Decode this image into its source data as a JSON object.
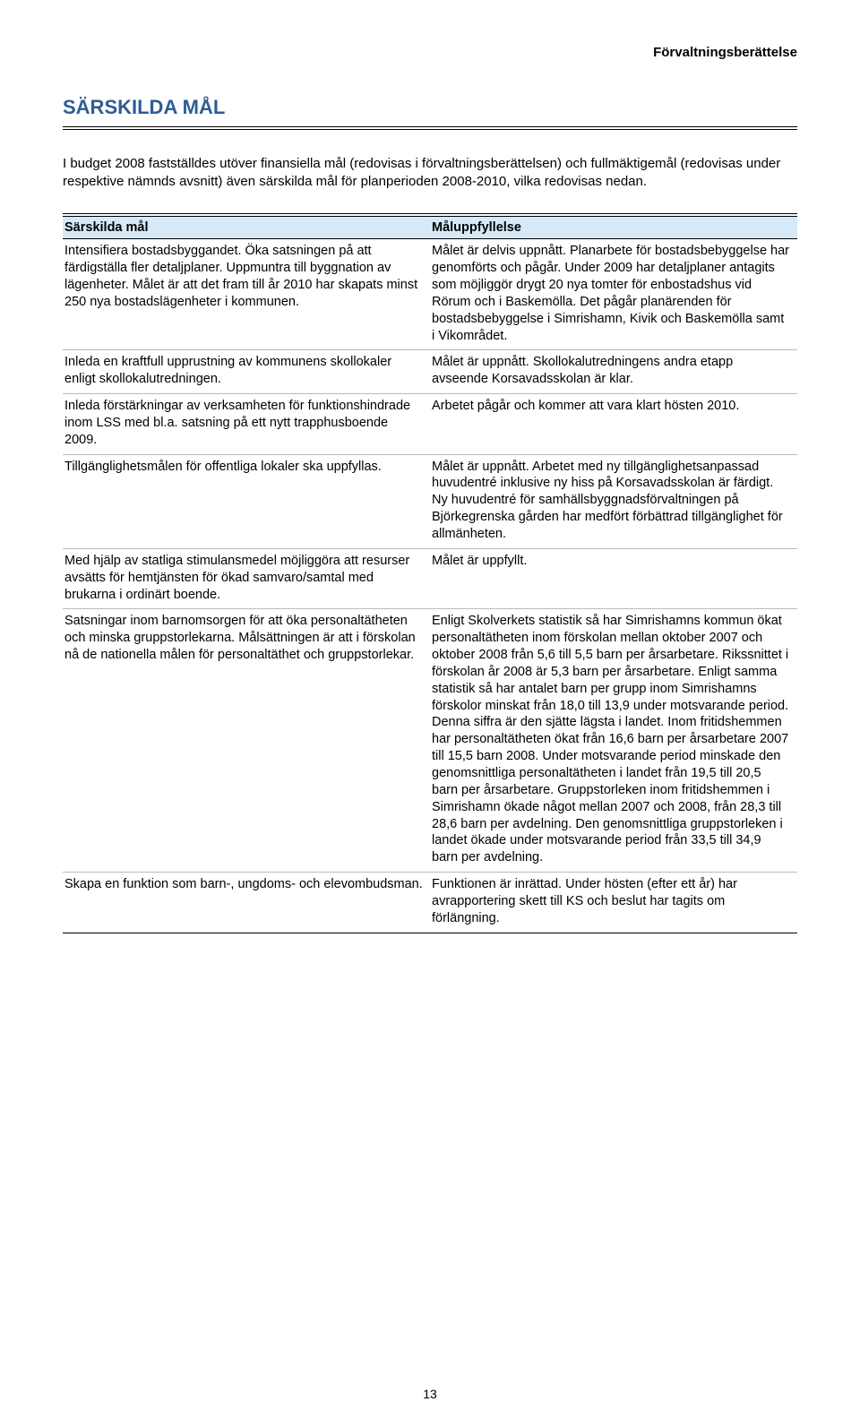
{
  "header": "Förvaltningsberättelse",
  "title": "SÄRSKILDA MÅL",
  "intro": "I budget 2008 fastställdes utöver finansiella mål (redovisas i förvaltningsberättelsen) och fullmäktigemål (redovisas under respektive nämnds avsnitt) även särskilda mål för planperioden 2008-2010, vilka redovisas nedan.",
  "table": {
    "col1_header": "Särskilda mål",
    "col2_header": "Måluppfyllelse",
    "rows": [
      {
        "c1": "Intensifiera bostadsbyggandet. Öka satsningen på att färdigställa fler detaljplaner. Uppmuntra till byggnation av lägenheter. Målet är att det fram till år 2010 har skapats minst 250 nya bostadslägenheter i kommunen.",
        "c2": "Målet är delvis uppnått. Planarbete för bostadsbebyggelse har genomförts och pågår. Under 2009 har detaljplaner antagits som möjliggör drygt 20 nya tomter för enbostadshus vid Rörum och i Baskemölla. Det pågår planärenden för bostadsbebyggelse i Simrishamn, Kivik och Baskemölla samt i Vikområdet."
      },
      {
        "c1": "Inleda en kraftfull upprustning av kommunens skollokaler enligt skollokalutredningen.",
        "c2": "Målet är uppnått. Skollokalutredningens andra etapp avseende Korsavadsskolan är klar."
      },
      {
        "c1": "Inleda förstärkningar av verksamheten för funktionshindrade inom LSS med bl.a. satsning på ett nytt trapphusboende 2009.",
        "c2": "Arbetet pågår och kommer att vara klart hösten 2010."
      },
      {
        "c1": "Tillgänglighetsmålen för offentliga lokaler ska uppfyllas.",
        "c2": "Målet är uppnått. Arbetet med ny tillgänglighetsanpassad huvudentré inklusive ny hiss på Korsavadsskolan är färdigt. Ny huvudentré för samhällsbyggnadsförvaltningen på Björkegrenska gården har medfört förbättrad tillgänglighet för allmänheten."
      },
      {
        "c1": "Med hjälp av statliga stimulansmedel möjliggöra att resurser avsätts för hemtjänsten för ökad samvaro/samtal med brukarna i ordinärt boende.",
        "c2": "Målet är uppfyllt."
      },
      {
        "c1": "Satsningar inom barnomsorgen för att öka personaltätheten och minska gruppstorlekarna. Målsättningen är att i förskolan nå de nationella målen för personaltäthet och gruppstorlekar.",
        "c2": "Enligt Skolverkets statistik så har Simrishamns kommun ökat personaltätheten inom förskolan mellan oktober 2007 och oktober 2008 från 5,6 till 5,5 barn per årsarbetare. Rikssnittet i förskolan år 2008 är 5,3 barn per årsarbetare. Enligt samma statistik så har antalet barn per grupp inom Simrishamns förskolor minskat från 18,0 till 13,9 under motsvarande period. Denna siffra är den sjätte lägsta i landet. Inom fritidshemmen har personaltätheten ökat från 16,6 barn per årsarbetare 2007 till 15,5 barn 2008. Under motsvarande period minskade den genomsnittliga personaltätheten i landet från 19,5 till 20,5 barn per årsarbetare. Gruppstorleken inom fritidshemmen i Simrishamn ökade något mellan 2007 och 2008, från 28,3 till 28,6 barn per avdelning. Den genomsnittliga gruppstorleken i landet ökade under motsvarande period från 33,5 till 34,9 barn per avdelning."
      },
      {
        "c1": "Skapa en funktion som barn-, ungdoms- och elevombudsman.",
        "c2": "Funktionen är inrättad. Under hösten (efter ett år) har avrapportering skett till KS och beslut har tagits om förlängning."
      }
    ]
  },
  "page_number": "13",
  "colors": {
    "title_color": "#2f5c95",
    "header_row_bg": "#d6e9f8",
    "text_color": "#000000",
    "background": "#ffffff"
  }
}
